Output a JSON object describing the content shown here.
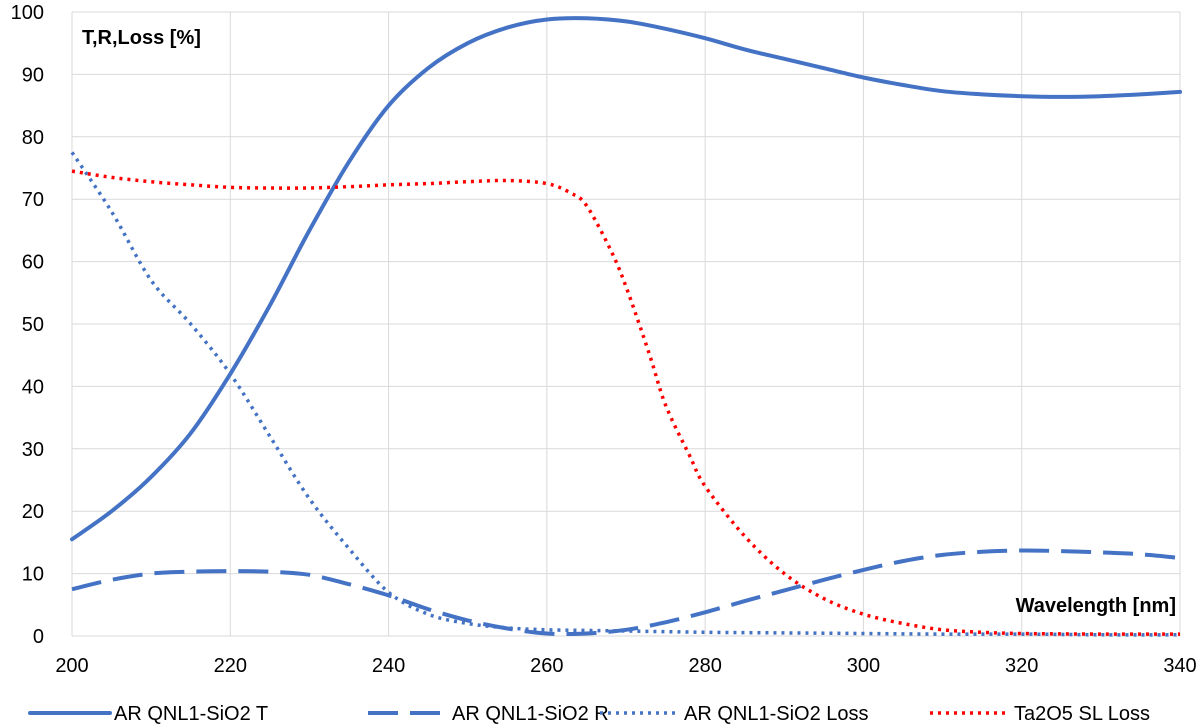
{
  "chart_data": {
    "type": "line",
    "title": "",
    "ylabel": "T,R,Loss [%]",
    "xlabel": "Wavelength [nm]",
    "xlim": [
      200,
      340
    ],
    "ylim": [
      0,
      100
    ],
    "x_ticks": [
      "200",
      "220",
      "240",
      "260",
      "280",
      "300",
      "320",
      "340"
    ],
    "y_ticks": [
      "0",
      "10",
      "20",
      "30",
      "40",
      "50",
      "60",
      "70",
      "80",
      "90",
      "100"
    ],
    "grid": true,
    "legend_position": "bottom",
    "series": [
      {
        "name": "AR QNL1-SiO2 T",
        "color": "#4472c4",
        "style": "solid",
        "x": [
          200,
          205,
          210,
          215,
          220,
          225,
          230,
          235,
          240,
          245,
          250,
          255,
          260,
          265,
          270,
          275,
          280,
          285,
          290,
          295,
          300,
          305,
          310,
          315,
          320,
          325,
          330,
          335,
          340
        ],
        "y": [
          15.5,
          20,
          25.5,
          32.5,
          42,
          53,
          65,
          76,
          85,
          91,
          95,
          97.5,
          98.8,
          99,
          98.5,
          97.3,
          95.8,
          94,
          92.5,
          91,
          89.5,
          88.3,
          87.3,
          86.8,
          86.5,
          86.4,
          86.5,
          86.8,
          87.2
        ]
      },
      {
        "name": "AR QNL1-SiO2 R",
        "color": "#4472c4",
        "style": "dashed",
        "x": [
          200,
          205,
          210,
          215,
          220,
          225,
          230,
          235,
          240,
          245,
          250,
          255,
          260,
          265,
          270,
          275,
          280,
          285,
          290,
          295,
          300,
          305,
          310,
          315,
          320,
          325,
          330,
          335,
          340
        ],
        "y": [
          7.5,
          9,
          10,
          10.3,
          10.4,
          10.3,
          9.8,
          8.3,
          6.5,
          4.3,
          2.5,
          1.2,
          0.4,
          0.4,
          1,
          2.2,
          3.8,
          5.6,
          7.3,
          9,
          10.6,
          12,
          13,
          13.5,
          13.7,
          13.6,
          13.4,
          13.1,
          12.5
        ]
      },
      {
        "name": "AR QNL1-SiO2 Loss",
        "color": "#4472c4",
        "style": "dotted",
        "x": [
          200,
          205,
          210,
          215,
          220,
          225,
          230,
          235,
          240,
          245,
          250,
          255,
          260,
          265,
          270,
          280,
          290,
          300,
          310,
          320,
          330,
          340
        ],
        "y": [
          77.5,
          68,
          57,
          50,
          42,
          32,
          22,
          14,
          7,
          3.5,
          2,
          1.3,
          1,
          0.9,
          0.8,
          0.6,
          0.5,
          0.4,
          0.3,
          0.3,
          0.2,
          0.2
        ]
      },
      {
        "name": "Ta2O5 SL Loss",
        "color": "#ff0000",
        "style": "dotted",
        "x": [
          200,
          205,
          210,
          215,
          220,
          225,
          230,
          235,
          240,
          245,
          250,
          255,
          260,
          263,
          265,
          268,
          270,
          273,
          275,
          278,
          280,
          285,
          290,
          295,
          300,
          305,
          310,
          315,
          320,
          330,
          340
        ],
        "y": [
          74.5,
          73.5,
          72.8,
          72.3,
          71.9,
          71.8,
          71.8,
          72,
          72.3,
          72.5,
          72.8,
          73,
          72.5,
          71,
          69,
          62,
          56,
          45,
          37,
          29,
          24,
          16,
          10,
          6,
          3.5,
          2,
          1,
          0.6,
          0.4,
          0.3,
          0.3
        ]
      }
    ]
  }
}
